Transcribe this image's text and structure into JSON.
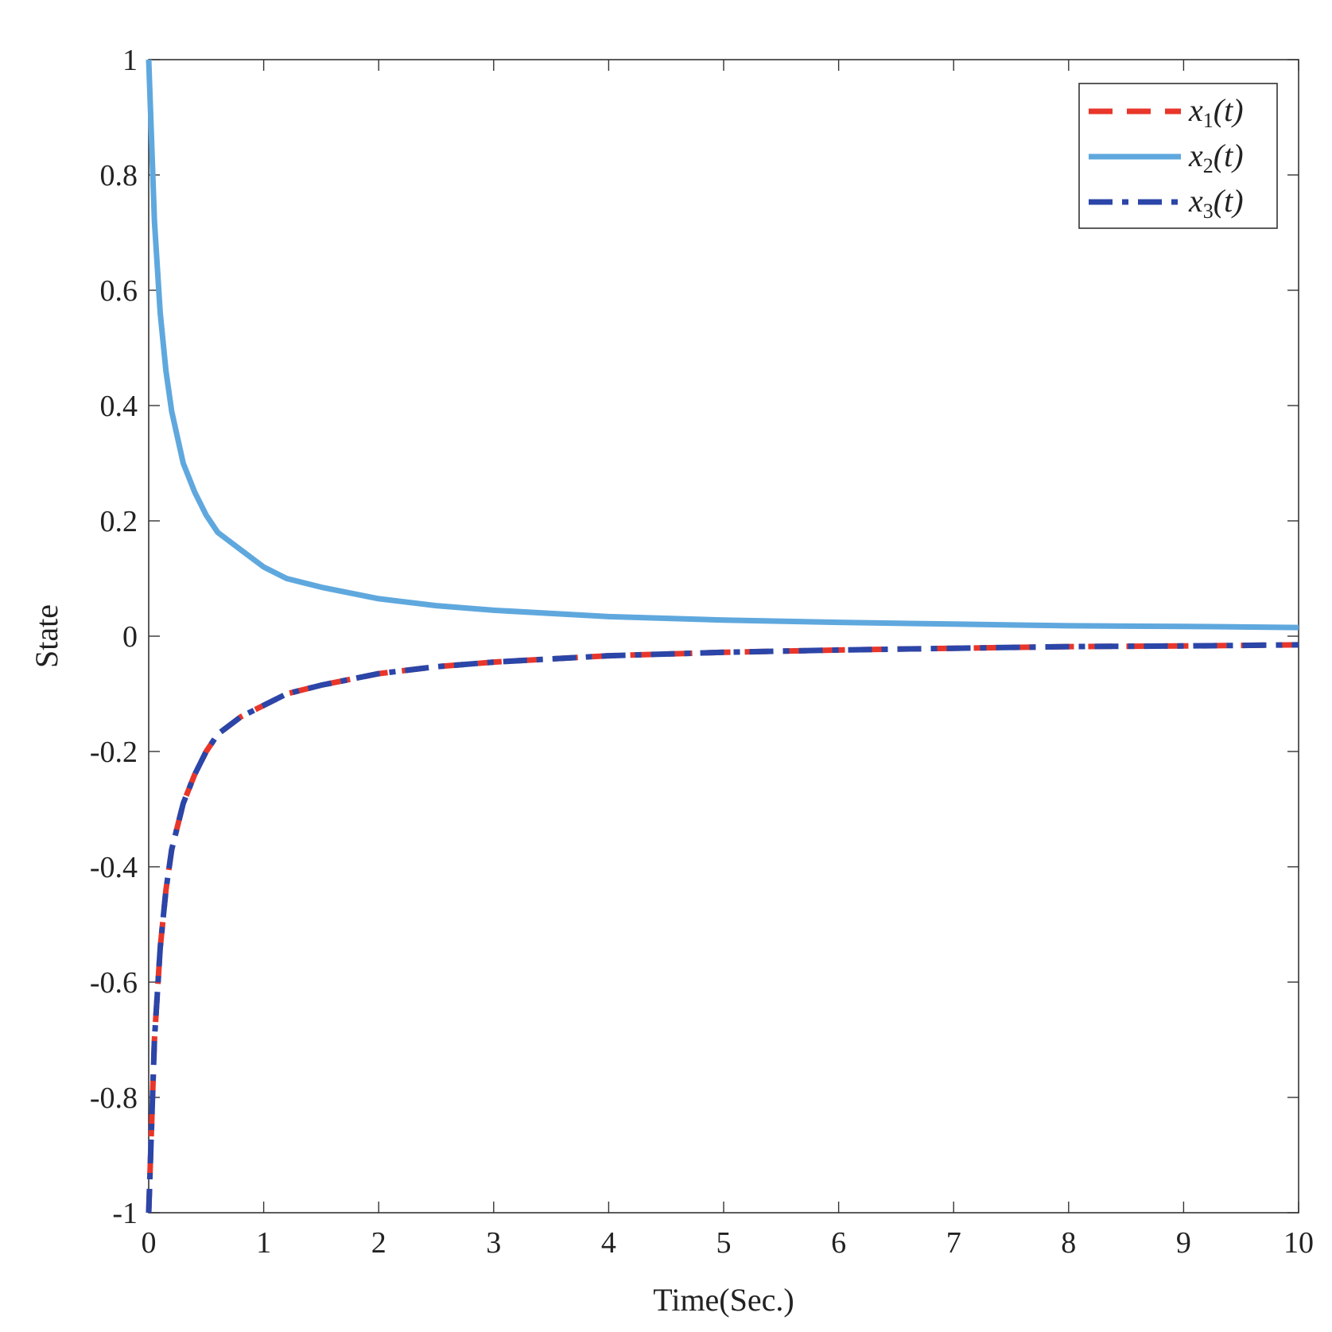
{
  "chart_data": {
    "type": "line",
    "title": "",
    "xlabel": "Time(Sec.)",
    "ylabel": "State",
    "xlim": [
      0,
      10
    ],
    "ylim": [
      -1,
      1
    ],
    "xticks": [
      0,
      1,
      2,
      3,
      4,
      5,
      6,
      7,
      8,
      9,
      10
    ],
    "xtick_labels": [
      "0",
      "1",
      "2",
      "3",
      "4",
      "5",
      "6",
      "7",
      "8",
      "9",
      "10"
    ],
    "yticks": [
      -1,
      -0.8,
      -0.6,
      -0.4,
      -0.2,
      0,
      0.2,
      0.4,
      0.6,
      0.8,
      1
    ],
    "ytick_labels": [
      "-1",
      "-0.8",
      "-0.6",
      "-0.4",
      "-0.2",
      "0",
      "0.2",
      "0.4",
      "0.6",
      "0.8",
      "1"
    ],
    "grid": false,
    "legend_position": "top-right",
    "x": [
      0,
      0.05,
      0.1,
      0.15,
      0.2,
      0.3,
      0.4,
      0.5,
      0.6,
      0.8,
      1,
      1.2,
      1.5,
      2,
      2.5,
      3,
      4,
      5,
      6,
      7,
      8,
      9,
      10
    ],
    "series": [
      {
        "name": "x_1(t)",
        "label_main": "x",
        "label_sub": "1",
        "label_tail": "(t)",
        "color": "#e8362a",
        "style": "dashed",
        "values": [
          -1,
          -0.7,
          -0.54,
          -0.44,
          -0.37,
          -0.29,
          -0.24,
          -0.2,
          -0.17,
          -0.14,
          -0.12,
          -0.1,
          -0.085,
          -0.065,
          -0.053,
          -0.045,
          -0.034,
          -0.028,
          -0.024,
          -0.021,
          -0.018,
          -0.017,
          -0.015
        ]
      },
      {
        "name": "x_2(t)",
        "label_main": "x",
        "label_sub": "2",
        "label_tail": "(t)",
        "color": "#5fa8de",
        "style": "solid",
        "values": [
          1,
          0.72,
          0.56,
          0.46,
          0.39,
          0.3,
          0.25,
          0.21,
          0.18,
          0.15,
          0.12,
          0.1,
          0.085,
          0.065,
          0.053,
          0.045,
          0.034,
          0.028,
          0.024,
          0.021,
          0.018,
          0.017,
          0.015
        ]
      },
      {
        "name": "x_3(t)",
        "label_main": "x",
        "label_sub": "3",
        "label_tail": "(t)",
        "color": "#2b45a8",
        "style": "dashdot",
        "values": [
          -1,
          -0.7,
          -0.54,
          -0.44,
          -0.37,
          -0.29,
          -0.24,
          -0.2,
          -0.17,
          -0.14,
          -0.12,
          -0.1,
          -0.085,
          -0.065,
          -0.053,
          -0.045,
          -0.034,
          -0.028,
          -0.024,
          -0.021,
          -0.018,
          -0.017,
          -0.015
        ]
      }
    ]
  }
}
